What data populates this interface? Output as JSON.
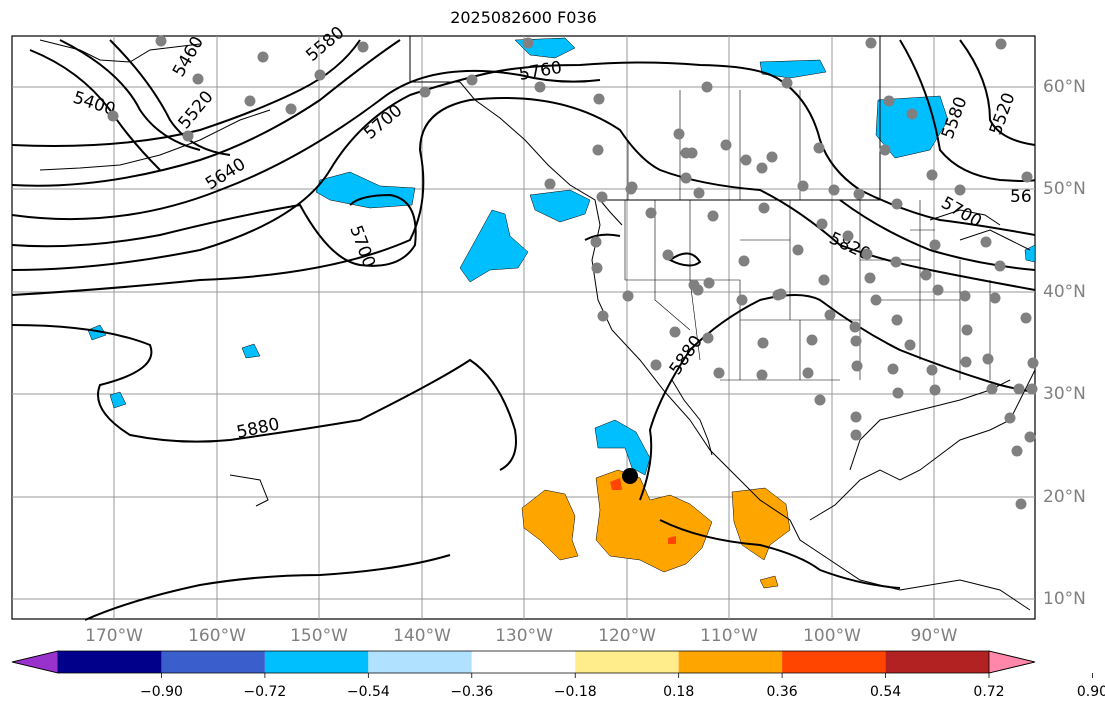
{
  "title": "2025082600 F036",
  "map": {
    "lon_labels": [
      "170°W",
      "160°W",
      "150°W",
      "140°W",
      "130°W",
      "120°W",
      "110°W",
      "100°W",
      "90°W"
    ],
    "lat_labels": [
      "60°N",
      "50°N",
      "40°N",
      "30°N",
      "20°N",
      "10°N"
    ],
    "contour_labels": [
      "5400",
      "5460",
      "5520",
      "5580",
      "5640",
      "5700",
      "5760",
      "5700",
      "5820",
      "5880",
      "5880",
      "5580",
      "5520",
      "56",
      "5700"
    ],
    "marker": "black-circle"
  },
  "colorbar": {
    "ticks": [
      "−0.90",
      "−0.72",
      "−0.54",
      "−0.36",
      "−0.18",
      "0.18",
      "0.36",
      "0.54",
      "0.72",
      "0.90"
    ],
    "colors": [
      "#9932cc",
      "#00008b",
      "#3a5fcd",
      "#00bfff",
      "#b0e2ff",
      "#ffffff",
      "#ffec8b",
      "#ffa500",
      "#ff4500",
      "#b22222",
      "#ff88aa"
    ]
  },
  "colors": {
    "cool": "#00bfff",
    "warm": "#ffa500",
    "hot": "#ff4500",
    "station": "#808080"
  }
}
